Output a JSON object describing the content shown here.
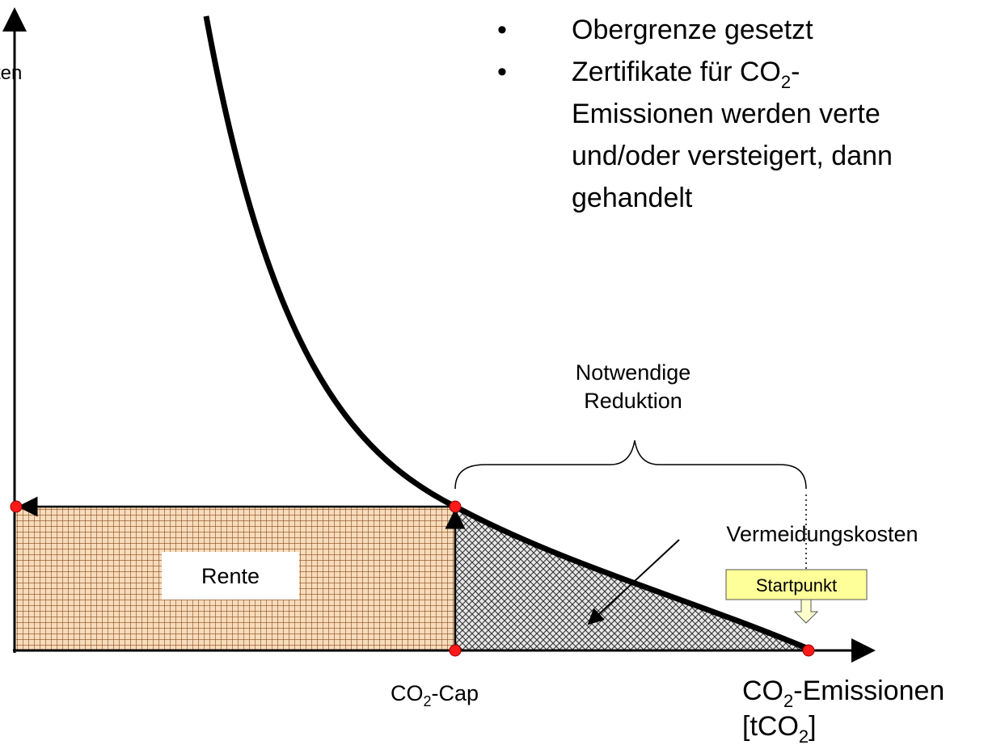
{
  "axis_label_y": "ten",
  "bullets": [
    {
      "text": "Obergrenze gesetzt"
    },
    {
      "lines": [
        {
          "pre": "Zertifikate für CO",
          "sub": "2",
          "post": "-"
        },
        {
          "text": "Emissionen werden verte"
        },
        {
          "text": "und/oder versteigert, dann"
        },
        {
          "text": "gehandelt"
        }
      ]
    }
  ],
  "labels": {
    "reduction": [
      "Notwendige",
      "Reduktion"
    ],
    "avoidance": "Vermeidungskosten",
    "rent": "Rente",
    "start": "Startpunkt",
    "cap": {
      "pre": "CO",
      "sub": "2",
      "post": "-Cap"
    },
    "x_axis": {
      "pre": "CO",
      "sub": "2",
      "post": "-Emissionen"
    },
    "x_unit": {
      "pre": "[tCO",
      "sub": "2",
      "post": "]"
    }
  }
}
